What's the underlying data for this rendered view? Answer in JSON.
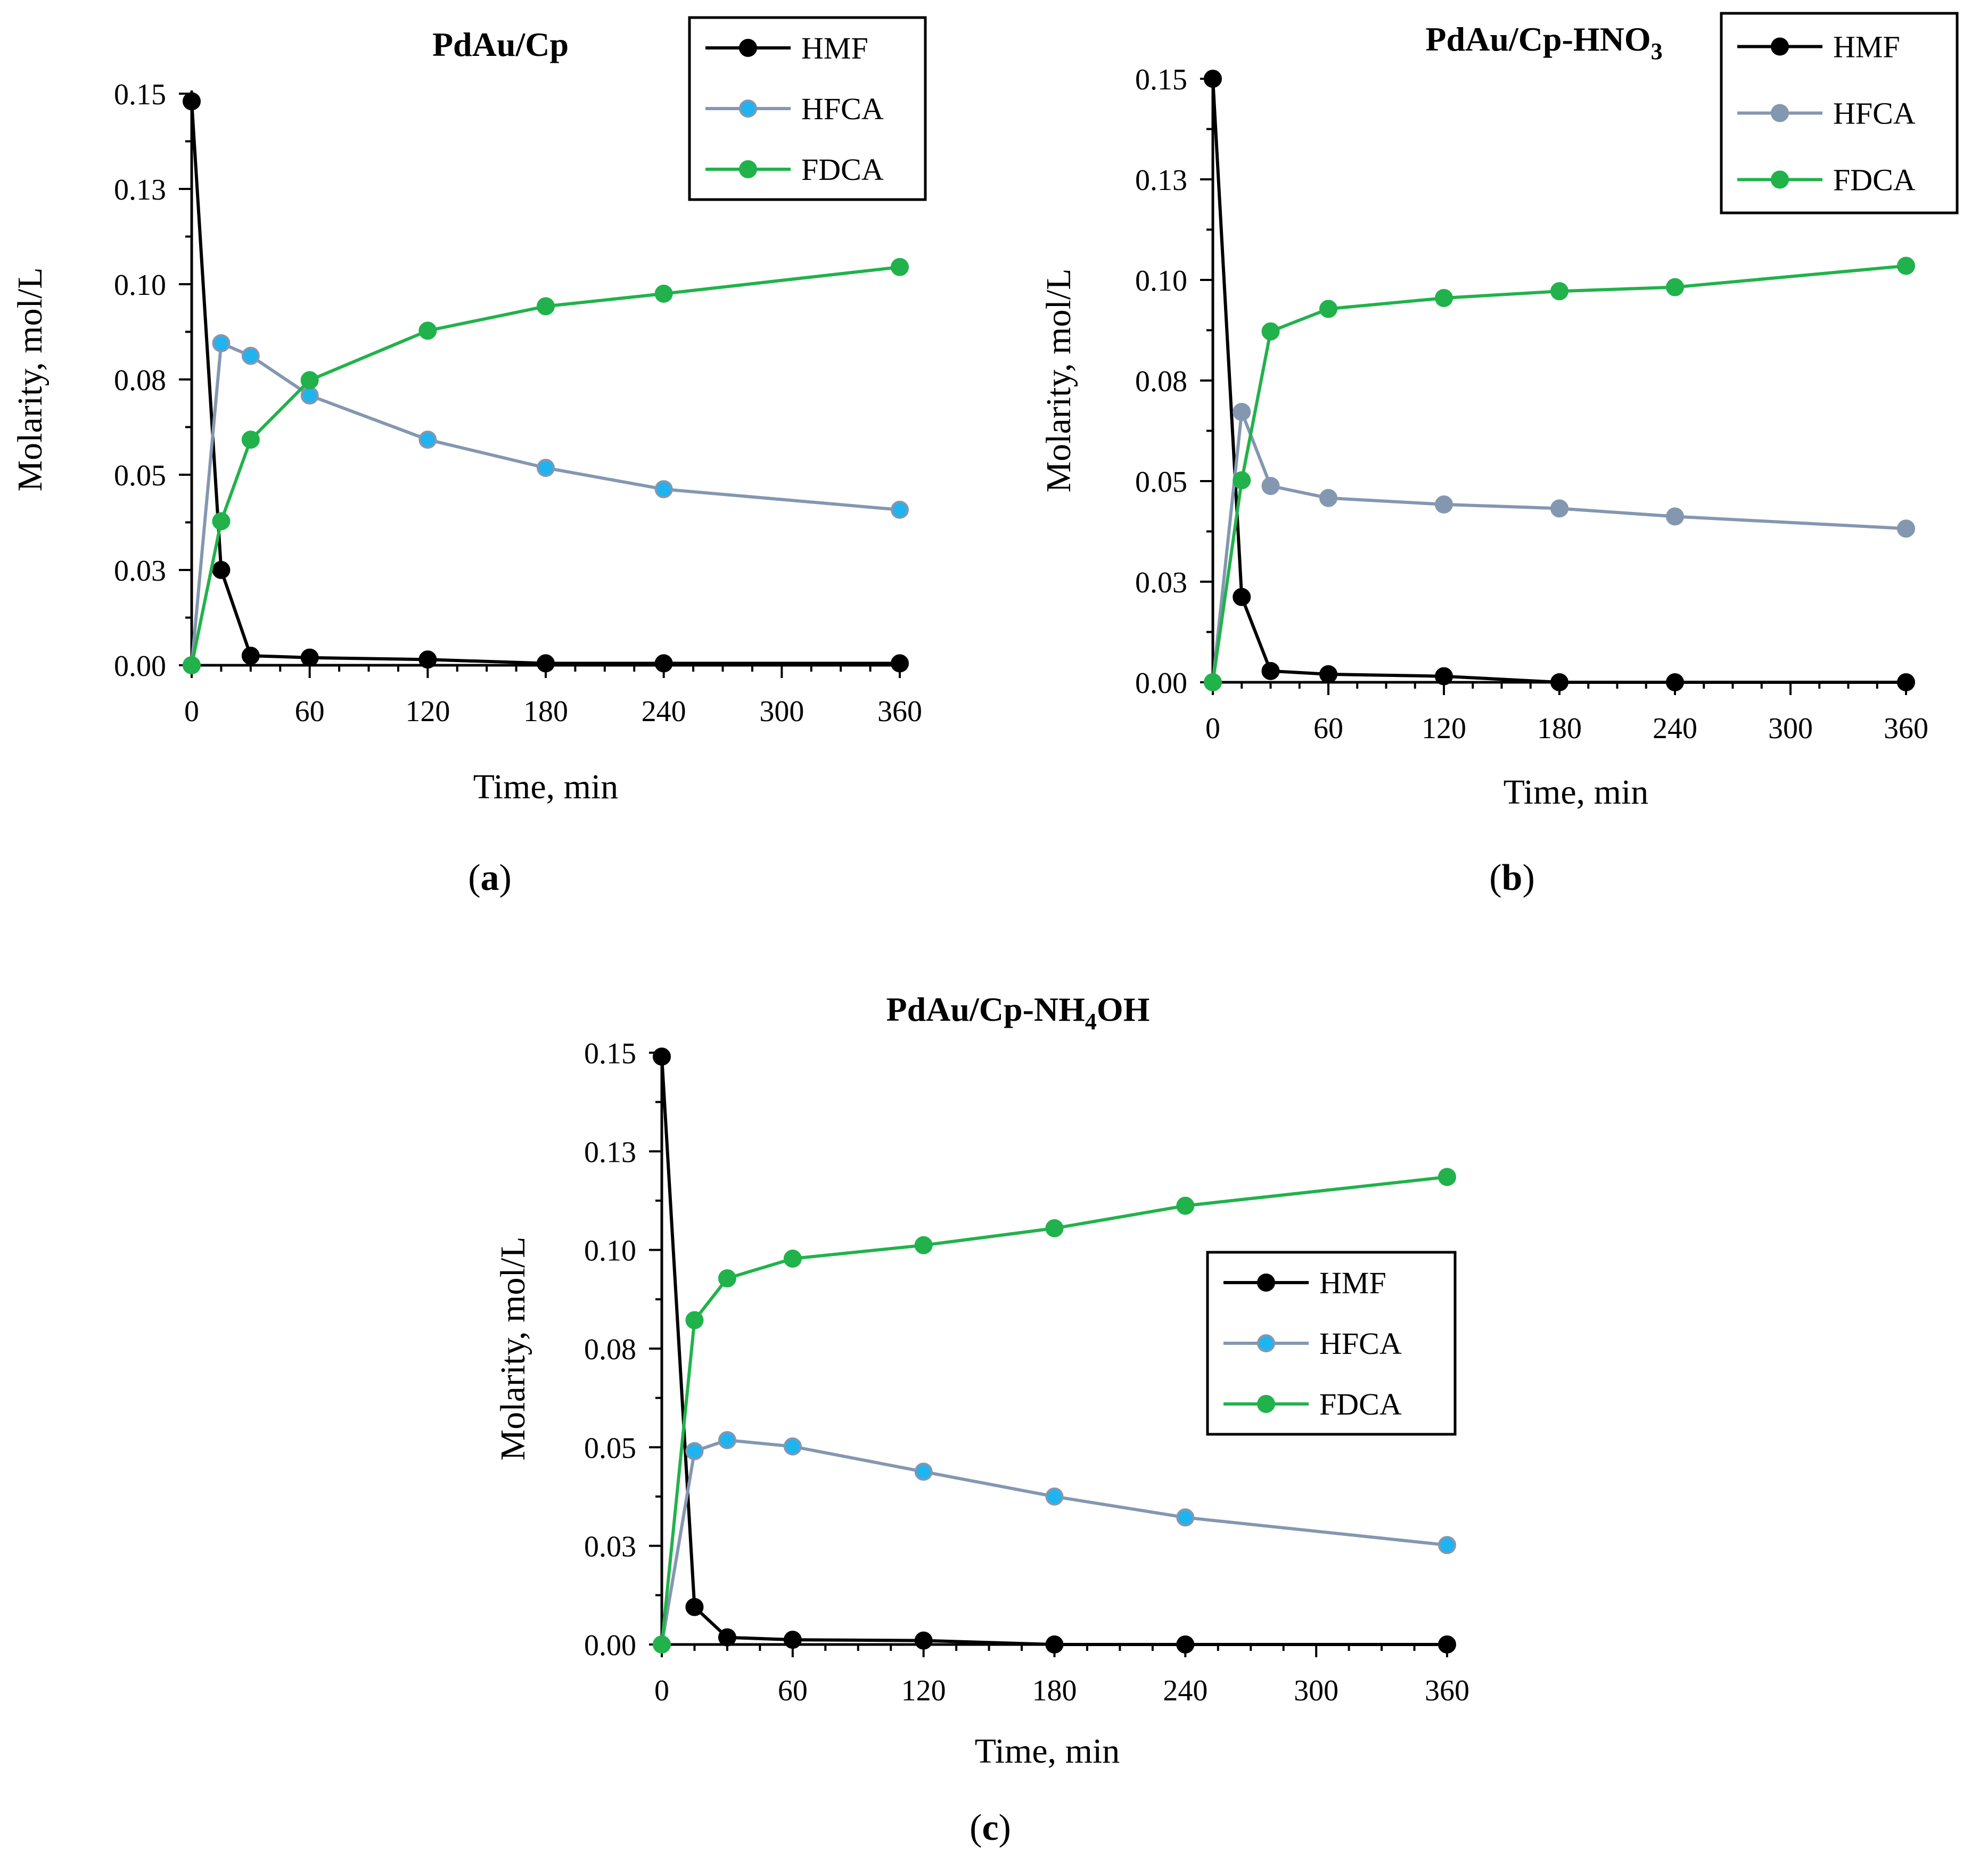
{
  "chart_data": [
    {
      "type": "line",
      "title": "PdAu/Cp",
      "caption": "a",
      "xlabel": "Time, min",
      "ylabel": "Molarity,  mol/L",
      "xlim": [
        0,
        360
      ],
      "ylim": [
        0,
        0.15
      ],
      "xticks": [
        "0",
        "60",
        "120",
        "180",
        "240",
        "300",
        "360"
      ],
      "yticks": [
        "0.00",
        "0.03",
        "0.05",
        "0.08",
        "0.10",
        "0.13",
        "0.15"
      ],
      "legend_position": "top-right",
      "series": [
        {
          "name": "HMF",
          "color": "#000000",
          "marker_fill": "#000000",
          "x": [
            0,
            15,
            30,
            60,
            120,
            180,
            240,
            360
          ],
          "y": [
            0.148,
            0.025,
            0.0025,
            0.002,
            0.0015,
            0.0005,
            0.0005,
            0.0005
          ]
        },
        {
          "name": "HFCA",
          "color": "#8497b0",
          "marker_fill": "#1eb4f0",
          "x": [
            0,
            15,
            30,
            60,
            120,
            180,
            240,
            360
          ],
          "y": [
            0.0,
            0.0845,
            0.0812,
            0.0708,
            0.0592,
            0.0518,
            0.0462,
            0.0408
          ]
        },
        {
          "name": "FDCA",
          "color": "#21b24b",
          "marker_fill": "#21b24b",
          "x": [
            0,
            15,
            30,
            60,
            120,
            180,
            240,
            360
          ],
          "y": [
            0.0,
            0.0378,
            0.0592,
            0.0748,
            0.0878,
            0.0942,
            0.0975,
            0.1045
          ]
        }
      ]
    },
    {
      "type": "line",
      "title": "PdAu/Cp-HNO",
      "title_sub": "3",
      "caption": "b",
      "xlabel": "Time, min",
      "ylabel": "Molarity,  mol/L",
      "xlim": [
        0,
        360
      ],
      "ylim": [
        0,
        0.15
      ],
      "xticks": [
        "0",
        "60",
        "120",
        "180",
        "240",
        "300",
        "360"
      ],
      "yticks": [
        "0.00",
        "0.03",
        "0.05",
        "0.08",
        "0.10",
        "0.13",
        "0.15"
      ],
      "legend_position": "top-right",
      "series": [
        {
          "name": "HMF",
          "color": "#000000",
          "marker_fill": "#000000",
          "x": [
            0,
            15,
            30,
            60,
            120,
            180,
            240,
            360
          ],
          "y": [
            0.15,
            0.0212,
            0.0028,
            0.002,
            0.0015,
            0.0,
            0.0,
            0.0
          ]
        },
        {
          "name": "HFCA",
          "color": "#8497b0",
          "marker_fill": "#8497b0",
          "x": [
            0,
            15,
            30,
            60,
            120,
            180,
            240,
            360
          ],
          "y": [
            0.0,
            0.0672,
            0.0488,
            0.0458,
            0.0442,
            0.0432,
            0.0412,
            0.0382
          ]
        },
        {
          "name": "FDCA",
          "color": "#21b24b",
          "marker_fill": "#21b24b",
          "x": [
            0,
            15,
            30,
            60,
            120,
            180,
            240,
            360
          ],
          "y": [
            0.0,
            0.0502,
            0.0872,
            0.0928,
            0.0955,
            0.0972,
            0.0982,
            0.1035
          ]
        }
      ]
    },
    {
      "type": "line",
      "title": "PdAu/Cp-NH",
      "title_sub": "4",
      "title_after": "OH",
      "caption": "c",
      "xlabel": "Time, min",
      "ylabel": "Molarity,  mol/L",
      "xlim": [
        0,
        360
      ],
      "ylim": [
        0,
        0.15
      ],
      "xticks": [
        "0",
        "60",
        "120",
        "180",
        "240",
        "300",
        "360"
      ],
      "yticks": [
        "0.00",
        "0.03",
        "0.05",
        "0.08",
        "0.10",
        "0.13",
        "0.15"
      ],
      "legend_position": "right",
      "series": [
        {
          "name": "HMF",
          "color": "#000000",
          "marker_fill": "#000000",
          "x": [
            0,
            15,
            30,
            60,
            120,
            180,
            240,
            360
          ],
          "y": [
            0.149,
            0.0095,
            0.0018,
            0.0012,
            0.001,
            0.0,
            0.0,
            0.0
          ]
        },
        {
          "name": "HFCA",
          "color": "#8497b0",
          "marker_fill": "#1eb4f0",
          "x": [
            0,
            15,
            30,
            60,
            120,
            180,
            240,
            360
          ],
          "y": [
            0.0,
            0.049,
            0.0518,
            0.0502,
            0.0438,
            0.0375,
            0.0322,
            0.0252
          ]
        },
        {
          "name": "FDCA",
          "color": "#21b24b",
          "marker_fill": "#21b24b",
          "x": [
            0,
            15,
            30,
            60,
            120,
            180,
            240,
            360
          ],
          "y": [
            0.0,
            0.0822,
            0.0928,
            0.0978,
            0.1012,
            0.1055,
            0.1112,
            0.1185
          ]
        }
      ]
    }
  ]
}
